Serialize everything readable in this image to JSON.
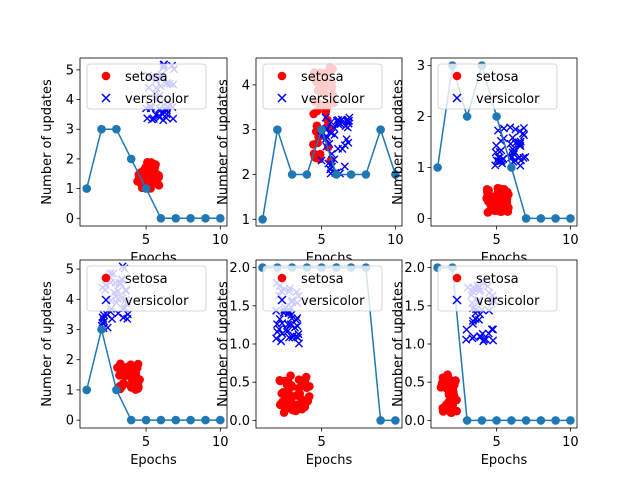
{
  "figure": {
    "legend_setosa": "setosa",
    "legend_versicolor": "versicolor",
    "xlabel": "Epochs",
    "ylabel": "Number of updates",
    "colors": {
      "setosa": "#ff0000",
      "versicolor": "#0000ff",
      "line": "#1f77b4",
      "axis": "#000000",
      "background": "#ffffff"
    }
  },
  "chart_data": [
    {
      "type": "line",
      "xlabel": "Epochs",
      "ylabel": "Number of updates",
      "xlim": [
        0.55,
        10.45
      ],
      "ylim": [
        -0.26,
        5.4
      ],
      "xticks": [
        5,
        10
      ],
      "yticks": [
        0,
        1,
        2,
        3,
        4,
        5
      ],
      "legend": {
        "position": "top-left",
        "entries": [
          "setosa",
          "versicolor"
        ]
      },
      "line_series": {
        "x": [
          1,
          2,
          3,
          4,
          5,
          6,
          7,
          8,
          9,
          10
        ],
        "y": [
          1,
          3,
          3,
          2,
          1,
          0,
          0,
          0,
          0,
          0
        ]
      },
      "setosa_cluster": {
        "x_range": [
          4.4,
          5.9
        ],
        "y_range": [
          1.0,
          1.9
        ],
        "count": 45
      },
      "versicolor_cluster": {
        "x_range": [
          5.0,
          6.9
        ],
        "y_range": [
          3.0,
          5.2
        ],
        "count": 45
      }
    },
    {
      "type": "line",
      "xlabel": "Epochs",
      "ylabel": "Number of updates",
      "xlim": [
        0.55,
        10.45
      ],
      "ylim": [
        0.85,
        4.6
      ],
      "xticks": [
        5,
        10
      ],
      "yticks": [
        1,
        2,
        3,
        4
      ],
      "legend": {
        "position": "top-left",
        "entries": [
          "setosa",
          "versicolor"
        ]
      },
      "line_series": {
        "x": [
          1,
          2,
          3,
          4,
          5,
          6,
          7,
          8,
          9,
          10
        ],
        "y": [
          1,
          3,
          2,
          2,
          3,
          2,
          2,
          2,
          3,
          2
        ]
      },
      "setosa_cluster": {
        "x_range": [
          4.4,
          5.8
        ],
        "y_range": [
          2.3,
          4.4
        ],
        "count": 45
      },
      "versicolor_cluster": {
        "x_range": [
          4.9,
          7.0
        ],
        "y_range": [
          2.0,
          3.3
        ],
        "count": 45
      }
    },
    {
      "type": "line",
      "xlabel": "Epochs",
      "ylabel": "Number of updates",
      "xlim": [
        0.55,
        10.45
      ],
      "ylim": [
        -0.15,
        3.15
      ],
      "xticks": [
        5,
        10
      ],
      "yticks": [
        0,
        1,
        2,
        3
      ],
      "legend": {
        "position": "top-left",
        "entries": [
          "setosa",
          "versicolor"
        ]
      },
      "line_series": {
        "x": [
          1,
          2,
          3,
          4,
          5,
          6,
          7,
          8,
          9,
          10
        ],
        "y": [
          1,
          3,
          2,
          3,
          2,
          1,
          0,
          0,
          0,
          0
        ]
      },
      "setosa_cluster": {
        "x_range": [
          4.3,
          5.8
        ],
        "y_range": [
          0.1,
          0.6
        ],
        "count": 45
      },
      "versicolor_cluster": {
        "x_range": [
          4.9,
          7.0
        ],
        "y_range": [
          1.0,
          1.8
        ],
        "count": 45
      }
    },
    {
      "type": "line",
      "xlabel": "Epochs",
      "ylabel": "Number of updates",
      "xlim": [
        0.55,
        10.45
      ],
      "ylim": [
        -0.26,
        5.3
      ],
      "xticks": [
        5,
        10
      ],
      "yticks": [
        0,
        1,
        2,
        3,
        4,
        5
      ],
      "legend": {
        "position": "top-left",
        "entries": [
          "setosa",
          "versicolor"
        ]
      },
      "line_series": {
        "x": [
          1,
          2,
          3,
          4,
          5,
          6,
          7,
          8,
          9,
          10
        ],
        "y": [
          1,
          3,
          1,
          0,
          0,
          0,
          0,
          0,
          0,
          0
        ]
      },
      "setosa_cluster": {
        "x_range": [
          3.0,
          4.6
        ],
        "y_range": [
          1.0,
          1.9
        ],
        "count": 45
      },
      "versicolor_cluster": {
        "x_range": [
          2.0,
          3.8
        ],
        "y_range": [
          3.0,
          5.1
        ],
        "count": 45
      }
    },
    {
      "type": "line",
      "xlabel": "Epochs",
      "ylabel": "Number of updates",
      "xlim": [
        0.55,
        10.45
      ],
      "ylim": [
        -0.1,
        2.1
      ],
      "xticks": [
        5
      ],
      "yticks": [
        0.0,
        0.5,
        1.0,
        1.5,
        2.0
      ],
      "legend": {
        "position": "top-left",
        "entries": [
          "setosa",
          "versicolor"
        ]
      },
      "line_series": {
        "x": [
          1,
          2,
          3,
          4,
          5,
          6,
          7,
          8,
          9,
          10
        ],
        "y": [
          2,
          2,
          2,
          2,
          2,
          2,
          2,
          2,
          0,
          0
        ]
      },
      "setosa_cluster": {
        "x_range": [
          2.0,
          4.4
        ],
        "y_range": [
          0.1,
          0.6
        ],
        "count": 45
      },
      "versicolor_cluster": {
        "x_range": [
          1.9,
          3.5
        ],
        "y_range": [
          1.0,
          1.8
        ],
        "count": 45
      }
    },
    {
      "type": "line",
      "xlabel": "Epochs",
      "ylabel": "Number of updates",
      "xlim": [
        0.55,
        10.45
      ],
      "ylim": [
        -0.1,
        2.1
      ],
      "xticks": [
        5,
        10
      ],
      "yticks": [
        0.0,
        0.5,
        1.0,
        1.5,
        2.0
      ],
      "legend": {
        "position": "top-left",
        "entries": [
          "setosa",
          "versicolor"
        ]
      },
      "line_series": {
        "x": [
          1,
          2,
          3,
          4,
          5,
          6,
          7,
          8,
          9,
          10
        ],
        "y": [
          2,
          2,
          0,
          0,
          0,
          0,
          0,
          0,
          0,
          0
        ]
      },
      "setosa_cluster": {
        "x_range": [
          1.2,
          2.3
        ],
        "y_range": [
          0.1,
          0.6
        ],
        "count": 45
      },
      "versicolor_cluster": {
        "x_range": [
          2.9,
          4.9
        ],
        "y_range": [
          1.0,
          1.8
        ],
        "count": 45
      }
    }
  ]
}
